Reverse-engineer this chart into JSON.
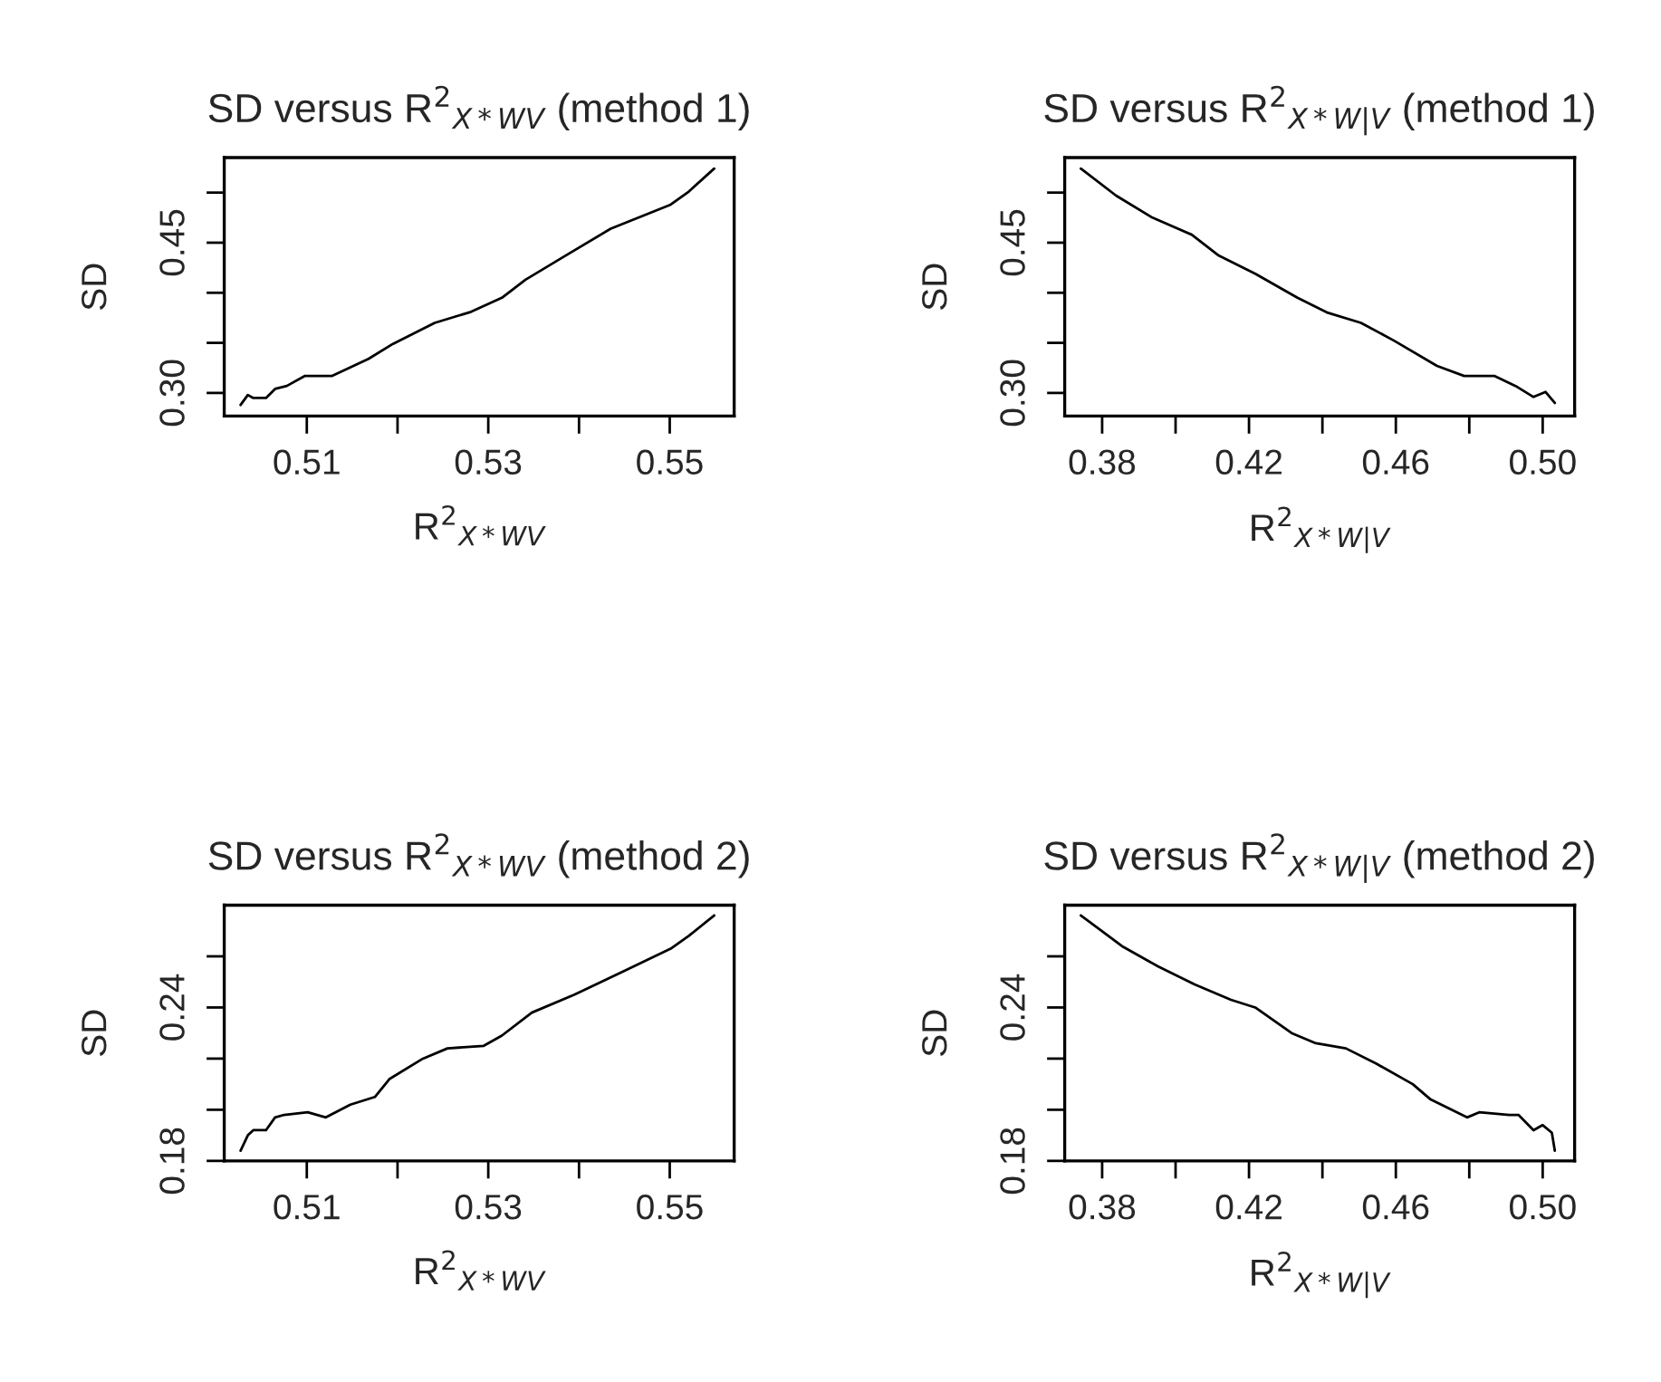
{
  "chart_data": [
    {
      "type": "line",
      "title": "SD versus R$^{2}$$_{X*WV}$ (method 1)",
      "xlabel": "R$^{2}$$_{X*WV}$",
      "ylabel": "SD",
      "grid": false,
      "legend": false,
      "xlim": [
        0.5009,
        0.5571
      ],
      "xticks": [
        0.51,
        {
          "value": 0.52,
          "label": null
        },
        0.53,
        {
          "value": 0.54,
          "label": null
        },
        0.55
      ],
      "ylim": [
        0.277,
        0.535
      ],
      "yticks": [
        {
          "value": 0.3,
          "label": "0.30"
        },
        {
          "value": 0.35,
          "label": null
        },
        {
          "value": 0.4,
          "label": null
        },
        0.45,
        {
          "value": 0.5,
          "label": null
        }
      ],
      "series": [
        {
          "color": "#000000",
          "x": [
            0.5027,
            0.5035,
            0.5041,
            0.5055,
            0.5065,
            0.5078,
            0.5098,
            0.5128,
            0.5168,
            0.5195,
            0.5241,
            0.5281,
            0.5315,
            0.5341,
            0.5385,
            0.5435,
            0.5501,
            0.5521,
            0.5549
          ],
          "values": [
            0.288,
            0.298,
            0.295,
            0.295,
            0.304,
            0.307,
            0.317,
            0.317,
            0.334,
            0.349,
            0.37,
            0.381,
            0.395,
            0.413,
            0.437,
            0.464,
            0.488,
            0.501,
            0.524
          ]
        }
      ]
    },
    {
      "type": "line",
      "title": "SD versus R$^{2}$$_{X*W|V}$ (method 1)",
      "xlabel": "R$^{2}$$_{X*W|V}$",
      "ylabel": "SD",
      "grid": false,
      "legend": false,
      "xlim": [
        0.3698,
        0.5087
      ],
      "xticks": [
        0.38,
        {
          "value": 0.4,
          "label": null
        },
        0.42,
        {
          "value": 0.44,
          "label": null
        },
        0.46,
        {
          "value": 0.48,
          "label": null
        },
        {
          "value": 0.5,
          "label": "0.50"
        }
      ],
      "ylim": [
        0.277,
        0.535
      ],
      "yticks": [
        {
          "value": 0.3,
          "label": "0.30"
        },
        {
          "value": 0.35,
          "label": null
        },
        {
          "value": 0.4,
          "label": null
        },
        0.45,
        {
          "value": 0.5,
          "label": null
        }
      ],
      "series": [
        {
          "color": "#000000",
          "x": [
            0.3742,
            0.3838,
            0.3937,
            0.4044,
            0.4118,
            0.4217,
            0.4332,
            0.4415,
            0.4505,
            0.4596,
            0.4712,
            0.4786,
            0.4868,
            0.4926,
            0.4975,
            0.5008,
            0.5033
          ],
          "values": [
            0.524,
            0.497,
            0.475,
            0.458,
            0.437,
            0.419,
            0.395,
            0.38,
            0.37,
            0.352,
            0.327,
            0.317,
            0.317,
            0.307,
            0.296,
            0.301,
            0.29
          ]
        }
      ]
    },
    {
      "type": "line",
      "title": "SD versus R$^{2}$$_{X*WV}$ (method 2)",
      "xlabel": "R$^{2}$$_{X*WV}$",
      "ylabel": "SD",
      "grid": false,
      "legend": false,
      "xlim": [
        0.5009,
        0.5571
      ],
      "xticks": [
        0.51,
        {
          "value": 0.52,
          "label": null
        },
        0.53,
        {
          "value": 0.54,
          "label": null
        },
        0.55
      ],
      "ylim": [
        0.18,
        0.28
      ],
      "yticks": [
        0.18,
        {
          "value": 0.2,
          "label": null
        },
        {
          "value": 0.22,
          "label": null
        },
        0.24,
        {
          "value": 0.26,
          "label": null
        }
      ],
      "series": [
        {
          "color": "#000000",
          "x": [
            0.5027,
            0.5035,
            0.5041,
            0.5055,
            0.5065,
            0.5075,
            0.5101,
            0.5121,
            0.5148,
            0.5175,
            0.5191,
            0.5228,
            0.5255,
            0.5295,
            0.5315,
            0.5348,
            0.5395,
            0.5448,
            0.5501,
            0.5521,
            0.5549
          ],
          "values": [
            0.184,
            0.19,
            0.192,
            0.192,
            0.197,
            0.198,
            0.199,
            0.197,
            0.202,
            0.205,
            0.212,
            0.22,
            0.224,
            0.225,
            0.229,
            0.238,
            0.245,
            0.254,
            0.263,
            0.268,
            0.276
          ]
        }
      ]
    },
    {
      "type": "line",
      "title": "SD versus R$^{2}$$_{X*W|V}$ (method 2)",
      "xlabel": "R$^{2}$$_{X*W|V}$",
      "ylabel": "SD",
      "grid": false,
      "legend": false,
      "xlim": [
        0.3698,
        0.5087
      ],
      "xticks": [
        0.38,
        {
          "value": 0.4,
          "label": null
        },
        0.42,
        {
          "value": 0.44,
          "label": null
        },
        0.46,
        {
          "value": 0.48,
          "label": null
        },
        {
          "value": 0.5,
          "label": "0.50"
        }
      ],
      "ylim": [
        0.18,
        0.28
      ],
      "yticks": [
        0.18,
        {
          "value": 0.2,
          "label": null
        },
        {
          "value": 0.22,
          "label": null
        },
        0.24,
        {
          "value": 0.26,
          "label": null
        }
      ],
      "series": [
        {
          "color": "#000000",
          "x": [
            0.3742,
            0.3854,
            0.3953,
            0.4052,
            0.4151,
            0.4217,
            0.4316,
            0.4382,
            0.4464,
            0.4547,
            0.4646,
            0.4695,
            0.4794,
            0.4827,
            0.4909,
            0.4934,
            0.4975,
            0.5,
            0.5025,
            0.5033
          ],
          "values": [
            0.276,
            0.264,
            0.256,
            0.249,
            0.243,
            0.24,
            0.23,
            0.226,
            0.224,
            0.218,
            0.21,
            0.204,
            0.197,
            0.199,
            0.198,
            0.198,
            0.192,
            0.194,
            0.191,
            0.184
          ]
        }
      ]
    }
  ]
}
